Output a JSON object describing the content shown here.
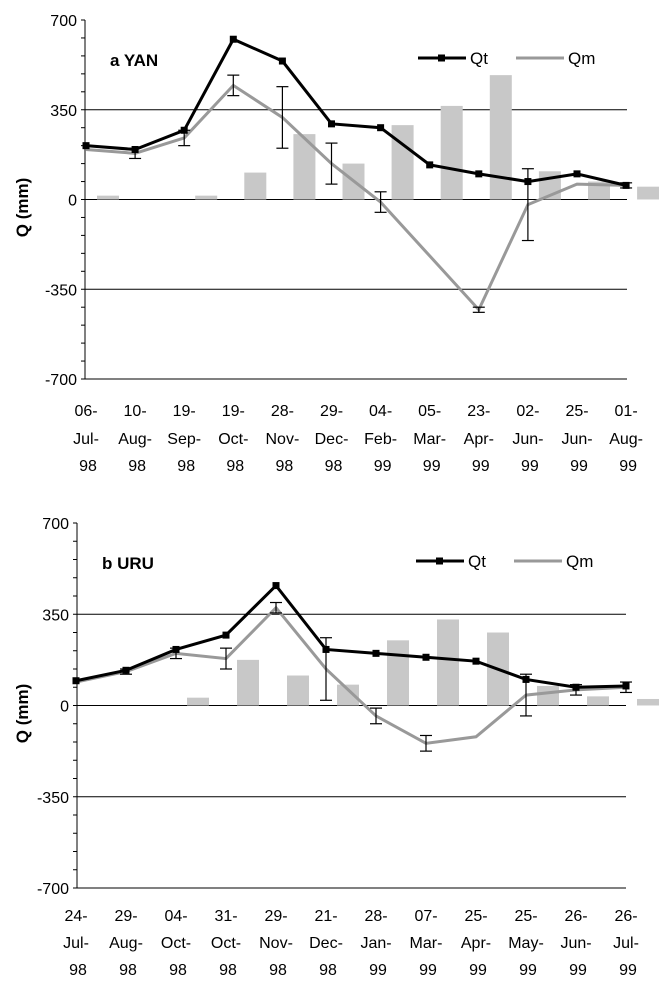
{
  "chart_data": [
    {
      "type": "line",
      "title": "a YAN",
      "ylabel": "Q (mm)",
      "xlabel": "",
      "ylim": [
        -700,
        700
      ],
      "yticks": [
        700,
        350,
        0,
        -350,
        -700
      ],
      "categories": [
        [
          "06-",
          "Jul-",
          "98"
        ],
        [
          "10-",
          "Aug-",
          "98"
        ],
        [
          "19-",
          "Sep-",
          "98"
        ],
        [
          "19-",
          "Oct-",
          "98"
        ],
        [
          "28-",
          "Nov-",
          "98"
        ],
        [
          "29-",
          "Dec-",
          "98"
        ],
        [
          "04-",
          "Feb-",
          "99"
        ],
        [
          "05-",
          "Mar-",
          "99"
        ],
        [
          "23-",
          "Apr-",
          "99"
        ],
        [
          "02-",
          "Jun-",
          "99"
        ],
        [
          "25-",
          "Jun-",
          "99"
        ],
        [
          "01-",
          "Aug-",
          "99"
        ]
      ],
      "legend": [
        "Qt",
        "Qm"
      ],
      "legend_position": "top-right",
      "grid": "horizontal at ±350",
      "colors": {
        "Qt": "#000000",
        "Qm": "#999999",
        "bars": "#c8c8c8"
      },
      "series": [
        {
          "name": "Qt",
          "values": [
            210,
            195,
            270,
            625,
            540,
            295,
            280,
            135,
            100,
            70,
            100,
            55
          ]
        },
        {
          "name": "Qm",
          "values": [
            195,
            180,
            240,
            445,
            320,
            140,
            -10,
            -220,
            -430,
            -20,
            60,
            55
          ],
          "error": [
            null,
            20,
            30,
            40,
            120,
            80,
            40,
            null,
            10,
            140,
            null,
            10
          ]
        }
      ],
      "bars": [
        15,
        0,
        15,
        105,
        255,
        140,
        290,
        365,
        485,
        110,
        70,
        50
      ]
    },
    {
      "type": "line",
      "title": "b URU",
      "ylabel": "Q (mm)",
      "xlabel": "",
      "ylim": [
        -700,
        700
      ],
      "yticks": [
        700,
        350,
        0,
        -350,
        -700
      ],
      "categories": [
        [
          "24-",
          "Jul-",
          "98"
        ],
        [
          "29-",
          "Aug-",
          "98"
        ],
        [
          "04-",
          "Oct-",
          "98"
        ],
        [
          "31-",
          "Oct-",
          "98"
        ],
        [
          "29-",
          "Nov-",
          "98"
        ],
        [
          "21-",
          "Dec-",
          "98"
        ],
        [
          "28-",
          "Jan-",
          "99"
        ],
        [
          "07-",
          "Mar-",
          "99"
        ],
        [
          "25-",
          "Apr-",
          "99"
        ],
        [
          "25-",
          "May-",
          "99"
        ],
        [
          "26-",
          "Jun-",
          "99"
        ],
        [
          "26-",
          "Jul-",
          "99"
        ]
      ],
      "legend": [
        "Qt",
        "Qm"
      ],
      "legend_position": "top-right",
      "grid": "horizontal at ±350",
      "colors": {
        "Qt": "#000000",
        "Qm": "#999999",
        "bars": "#c8c8c8"
      },
      "series": [
        {
          "name": "Qt",
          "values": [
            95,
            135,
            215,
            270,
            460,
            215,
            200,
            185,
            170,
            100,
            70,
            75
          ]
        },
        {
          "name": "Qm",
          "values": [
            90,
            130,
            200,
            180,
            375,
            140,
            -40,
            -145,
            -120,
            40,
            60,
            70
          ],
          "error": [
            null,
            10,
            20,
            40,
            20,
            120,
            30,
            30,
            null,
            80,
            20,
            20
          ]
        }
      ],
      "bars": [
        0,
        0,
        30,
        175,
        115,
        80,
        250,
        330,
        280,
        75,
        35,
        25
      ]
    }
  ]
}
